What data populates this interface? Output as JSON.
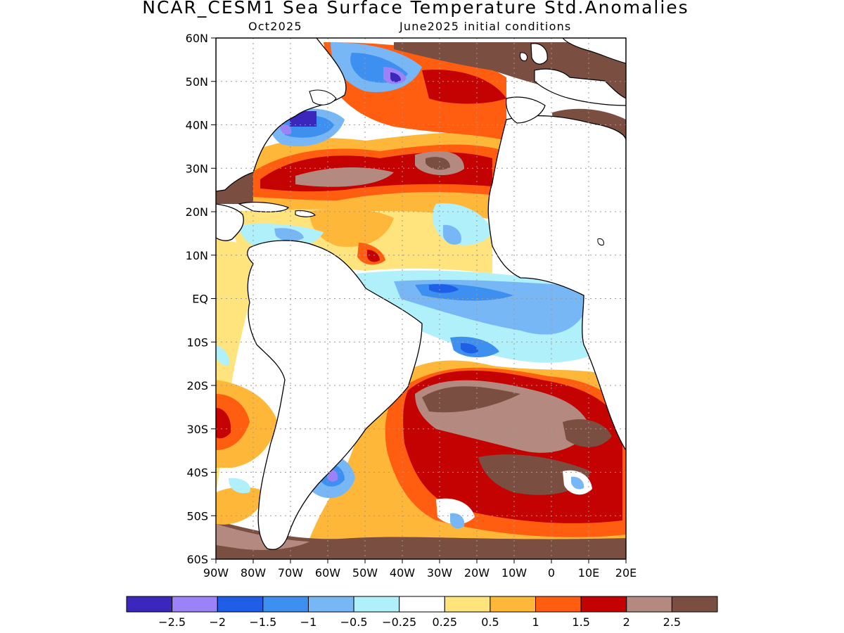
{
  "title": "NCAR_CESM1 Sea Surface Temperature Std.Anomalies",
  "subtitle_left": "Oct2025",
  "subtitle_right": "June2025 initial conditions",
  "lat_ticks": [
    "60N",
    "50N",
    "40N",
    "30N",
    "20N",
    "10N",
    "EQ",
    "10S",
    "20S",
    "30S",
    "40S",
    "50S",
    "60S"
  ],
  "lon_ticks": [
    "90W",
    "80W",
    "70W",
    "60W",
    "50W",
    "40W",
    "30W",
    "20W",
    "10W",
    "0",
    "10E",
    "20E"
  ],
  "map_extent": {
    "lon_min": -90,
    "lon_max": 20,
    "lat_min": -60,
    "lat_max": 60
  },
  "colorbar": {
    "colors": [
      "#3b27bb",
      "#9c82f7",
      "#1f5fe8",
      "#3d8ff0",
      "#78b7f5",
      "#b0f0fa",
      "#ffffff",
      "#ffe37c",
      "#ffb73a",
      "#ff5e10",
      "#c40202",
      "#b48a80",
      "#7a4e40"
    ],
    "labels": [
      "-2.5",
      "-2",
      "-1.5",
      "-1",
      "-0.5",
      "-0.25",
      "0.25",
      "0.5",
      "1",
      "1.5",
      "2",
      "2.5"
    ]
  },
  "colors": {
    "land": "#ffffff",
    "coast": "#000000",
    "grid": "#9a9a9a"
  }
}
